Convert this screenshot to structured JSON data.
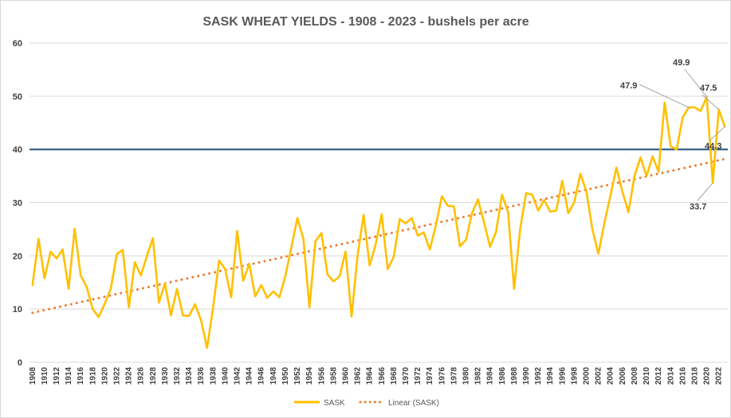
{
  "chart_data": {
    "type": "line",
    "title": "SASK WHEAT YIELDS - 1908 - 2023 - bushels per acre",
    "xlabel": "",
    "ylabel": "",
    "ylim": [
      0,
      60
    ],
    "yticks": [
      0,
      10,
      20,
      30,
      40,
      50,
      60
    ],
    "x_start": 1908,
    "x_end": 2023,
    "xtick_labels": [
      1908,
      1910,
      1912,
      1914,
      1916,
      1918,
      1920,
      1922,
      1924,
      1926,
      1928,
      1930,
      1932,
      1934,
      1936,
      1938,
      1940,
      1942,
      1944,
      1946,
      1948,
      1950,
      1952,
      1954,
      1956,
      1958,
      1960,
      1962,
      1964,
      1966,
      1968,
      1970,
      1972,
      1974,
      1976,
      1978,
      1980,
      1982,
      1984,
      1986,
      1988,
      1990,
      1992,
      1994,
      1996,
      1998,
      2000,
      2002,
      2004,
      2006,
      2008,
      2010,
      2012,
      2014,
      2016,
      2018,
      2020,
      2022
    ],
    "series": [
      {
        "name": "SASK",
        "color": "#FFC000",
        "values": [
          14.5,
          23.2,
          15.8,
          20.8,
          19.5,
          21.2,
          13.8,
          25.1,
          16.3,
          14.2,
          10.0,
          8.5,
          11.0,
          13.8,
          20.3,
          21.1,
          10.3,
          18.8,
          16.3,
          20.0,
          23.3,
          11.2,
          14.8,
          8.8,
          13.8,
          8.8,
          8.7,
          10.9,
          7.9,
          2.7,
          10.3,
          19.1,
          17.5,
          12.2,
          24.7,
          15.3,
          18.5,
          12.4,
          14.5,
          12.1,
          13.3,
          12.2,
          16.2,
          21.6,
          27.1,
          23.2,
          10.3,
          22.7,
          24.3,
          16.5,
          15.2,
          16.1,
          20.8,
          8.6,
          20.1,
          27.7,
          18.2,
          22.1,
          27.8,
          17.5,
          19.8,
          26.9,
          26.1,
          27.1,
          23.8,
          24.4,
          21.2,
          25.7,
          31.2,
          29.4,
          29.3,
          21.8,
          23.0,
          28.0,
          30.6,
          26.3,
          21.7,
          24.5,
          31.5,
          28.2,
          13.8,
          25.0,
          31.8,
          31.5,
          28.5,
          30.5,
          28.3,
          28.5,
          34.1,
          28.0,
          30.1,
          35.4,
          32.2,
          25.0,
          20.4,
          26.2,
          31.3,
          36.6,
          32.0,
          28.2,
          35.0,
          38.5,
          35.0,
          38.7,
          35.8,
          48.8,
          40.6,
          40.0,
          46.0,
          47.9,
          47.9,
          47.2,
          49.9,
          33.7,
          47.5,
          44.3
        ]
      },
      {
        "name": "Linear (SASK)",
        "color": "#ED7D31",
        "style": "dotted",
        "start": 9.3,
        "end": 38.2
      }
    ],
    "reference_lines": [
      {
        "name": "40 bu line",
        "y": 40,
        "color": "#1F4E79"
      }
    ],
    "annotations": [
      {
        "year": 2017,
        "value": 47.9,
        "text": "47.9"
      },
      {
        "year": 2020,
        "value": 49.9,
        "text": "49.9"
      },
      {
        "year": 2021,
        "value": 33.7,
        "text": "33.7"
      },
      {
        "year": 2022,
        "value": 47.5,
        "text": "47.5"
      },
      {
        "year": 2023,
        "value": 44.3,
        "text": "44.3"
      }
    ],
    "legend": {
      "placement": "bottom-center",
      "entries": [
        "SASK",
        "Linear (SASK)"
      ]
    },
    "grid": true
  }
}
